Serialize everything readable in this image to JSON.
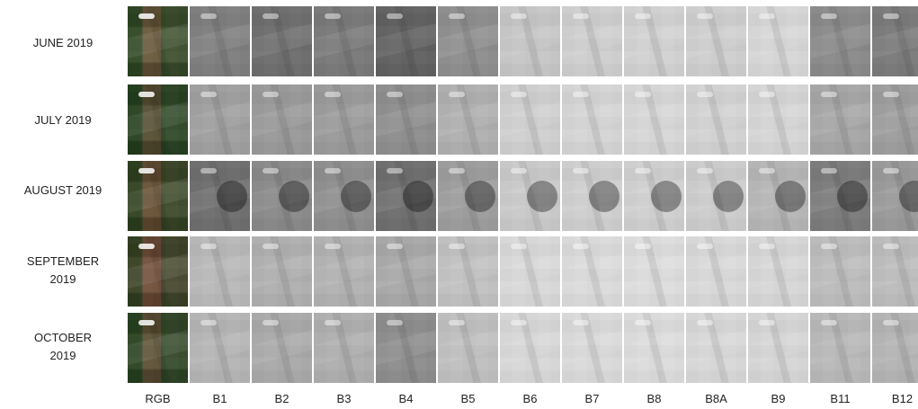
{
  "rows": [
    {
      "label_line1": "JUNE 2019",
      "label_line2": ""
    },
    {
      "label_line1": "JULY 2019",
      "label_line2": ""
    },
    {
      "label_line1": "AUGUST 2019",
      "label_line2": ""
    },
    {
      "label_line1": "SEPTEMBER",
      "label_line2": "2019"
    },
    {
      "label_line1": "OCTOBER",
      "label_line2": "2019"
    }
  ],
  "columns": [
    "RGB",
    "B1",
    "B2",
    "B3",
    "B4",
    "B5",
    "B6",
    "B7",
    "B8",
    "B8A",
    "B9",
    "B11",
    "B12"
  ],
  "tile_shades": [
    [
      "#5a5a3c",
      "#7f7f7f",
      "#6f6f6f",
      "#7a7a7a",
      "#626262",
      "#8f8f8f",
      "#c7c7c7",
      "#cfcfcf",
      "#d2d2d2",
      "#cfcfcf",
      "#d7d7d7",
      "#8b8b8b",
      "#7b7b7b"
    ],
    [
      "#3f4a2f",
      "#a0a0a0",
      "#9a9a9a",
      "#9b9b9b",
      "#8f8f8f",
      "#b0b0b0",
      "#d0d0d0",
      "#d5d5d5",
      "#d7d7d7",
      "#d3d3d3",
      "#d6d6d6",
      "#a7a7a7",
      "#9e9e9e"
    ],
    [
      "#5a4d33",
      "#6f6f6f",
      "#8a8a8a",
      "#8f8f8f",
      "#6f6f6f",
      "#9d9d9d",
      "#cacaca",
      "#cfcfcf",
      "#d0d0d0",
      "#cdcdcd",
      "#b6b6b6",
      "#7c7c7c",
      "#9a9a9a"
    ],
    [
      "#6a4a3b",
      "#b9b9b9",
      "#b0b0b0",
      "#b2b2b2",
      "#a9a9a9",
      "#c2c2c2",
      "#d9d9d9",
      "#dbdbdb",
      "#dddddd",
      "#d9d9d9",
      "#d7d7d7",
      "#bdbdbd",
      "#bdbdbd"
    ],
    [
      "#4a4f34",
      "#b5b5b5",
      "#aaaaaa",
      "#afafaf",
      "#8e8e8e",
      "#c0c0c0",
      "#d8d8d8",
      "#dadada",
      "#dcdcdc",
      "#d8d8d8",
      "#d6d6d6",
      "#b9b9b9",
      "#b4b4b4"
    ]
  ]
}
